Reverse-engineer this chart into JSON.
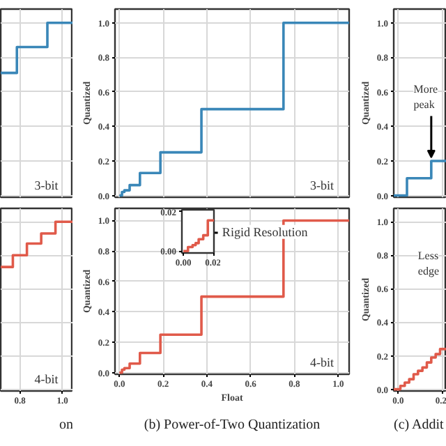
{
  "chart_data": [
    {
      "type": "step",
      "x": [
        0.71,
        0.786,
        0.929,
        1.05
      ],
      "values": [
        0.71,
        0.86,
        1.0,
        1.0
      ],
      "color": "#3a87b8",
      "xlim": [
        0.71,
        1.05
      ],
      "ylim": [
        -0.01,
        1.08
      ],
      "xticks": [
        0.8,
        1.0
      ],
      "yticks": [
        0,
        0.2,
        0.4,
        0.6,
        0.8,
        1.0
      ],
      "grid": true,
      "tick_labels": false,
      "annotations": [
        "3-bit"
      ]
    },
    {
      "type": "step",
      "x": [
        0,
        0.012,
        0.023,
        0.047,
        0.094,
        0.1875,
        0.375,
        0.75,
        1.05
      ],
      "values": [
        0,
        0.02,
        0.03,
        0.06,
        0.13,
        0.25,
        0.5,
        1.0,
        1.0
      ],
      "color": "#3a87b8",
      "xlim": [
        -0.02,
        1.05
      ],
      "ylim": [
        -0.01,
        1.08
      ],
      "xticks": [
        0,
        0.2,
        0.4,
        0.6,
        0.8,
        1.0
      ],
      "yticks": [
        {
          "value": 0,
          "label": "0.0"
        },
        0.2,
        0.4,
        0.6,
        0.8,
        {
          "value": 1.0,
          "label": "1.0"
        }
      ],
      "ylabel": "Quantized",
      "grid": true,
      "tick_labels": "y",
      "annotations": [
        "3-bit"
      ]
    },
    {
      "type": "step",
      "x": [
        -0.02,
        0.04,
        0.15,
        0.22
      ],
      "values": [
        0,
        0.1,
        0.2,
        0.2
      ],
      "color": "#3a87b8",
      "xlim": [
        -0.02,
        0.22
      ],
      "ylim": [
        -0.01,
        1.08
      ],
      "xticks": [
        0,
        0.2
      ],
      "yticks": [
        {
          "value": 0,
          "label": "0.0"
        },
        0.2,
        0.4,
        0.6,
        0.8,
        {
          "value": 1.0,
          "label": "1.0"
        }
      ],
      "ylabel": "Quantized",
      "grid": true,
      "tick_labels": "y",
      "annotations": [
        "More",
        "peak"
      ]
    },
    {
      "type": "step",
      "x": [
        0.71,
        0.767,
        0.833,
        0.9,
        0.967,
        1.05
      ],
      "values": [
        0.73,
        0.8,
        0.87,
        0.93,
        1.0,
        1.0
      ],
      "color": "#e05a4a",
      "xlim": [
        0.71,
        1.05
      ],
      "ylim": [
        -0.01,
        1.08
      ],
      "xticks": [
        0.8,
        {
          "value": 1.0,
          "label": "1.0"
        }
      ],
      "yticks": [
        0,
        0.2,
        0.4,
        0.6,
        0.8,
        1.0
      ],
      "grid": true,
      "tick_labels": "x",
      "annotations": [
        "4-bit",
        "on"
      ]
    },
    {
      "type": "step",
      "x": [
        0,
        0.012,
        0.023,
        0.047,
        0.094,
        0.1875,
        0.375,
        0.75,
        1.05
      ],
      "values": [
        0,
        0.02,
        0.03,
        0.06,
        0.13,
        0.25,
        0.5,
        1.0,
        1.0
      ],
      "color": "#e05a4a",
      "xlim": [
        -0.02,
        1.05
      ],
      "ylim": [
        -0.01,
        1.08
      ],
      "xticks": [
        {
          "value": 0,
          "label": "0.0"
        },
        0.2,
        0.4,
        0.6,
        0.8,
        {
          "value": 1.0,
          "label": "1.0"
        }
      ],
      "yticks": [
        {
          "value": 0,
          "label": "0.0"
        },
        0.2,
        0.4,
        0.6,
        0.8,
        {
          "value": 1.0,
          "label": "1.0"
        }
      ],
      "xlabel": "Float",
      "ylabel": "Quantized",
      "grid": true,
      "annotations": [
        "4-bit",
        "Rigid Resolution",
        "(b) Power-of-Two Quantization"
      ]
    },
    {
      "type": "step",
      "x": [
        -0.02,
        0.01,
        0.03,
        0.05,
        0.07,
        0.09,
        0.11,
        0.13,
        0.15,
        0.17,
        0.19,
        0.22
      ],
      "values": [
        0,
        0.02,
        0.04,
        0.06,
        0.09,
        0.11,
        0.13,
        0.16,
        0.19,
        0.21,
        0.24,
        0.24
      ],
      "color": "#e05a4a",
      "xlim": [
        -0.02,
        0.22
      ],
      "ylim": [
        -0.01,
        1.08
      ],
      "xticks": [
        {
          "value": 0,
          "label": "0.0"
        },
        0.2
      ],
      "yticks": [
        {
          "value": 0,
          "label": "0.0"
        },
        0.2,
        0.4,
        0.6,
        0.8,
        {
          "value": 1.0,
          "label": "1.0"
        }
      ],
      "ylabel": "Quantized",
      "grid": true,
      "annotations": [
        "Less",
        "edge",
        "(c) Addit"
      ]
    },
    {
      "type": "step",
      "x": [
        0,
        0.003,
        0.006,
        0.008,
        0.01,
        0.013,
        0.016,
        0.02
      ],
      "values": [
        0,
        0.002,
        0.003,
        0.004,
        0.006,
        0.008,
        0.0156,
        0.0156
      ],
      "color": "#e05a4a",
      "xlim": [
        -0.001,
        0.02
      ],
      "ylim": [
        -0.001,
        0.021
      ],
      "xticks": [
        {
          "value": 0,
          "label": "0.00"
        },
        {
          "value": 0.02,
          "label": "0.02"
        }
      ],
      "yticks": [
        {
          "value": 0,
          "label": "0.00"
        },
        {
          "value": 0.02,
          "label": "0.02"
        }
      ]
    }
  ]
}
